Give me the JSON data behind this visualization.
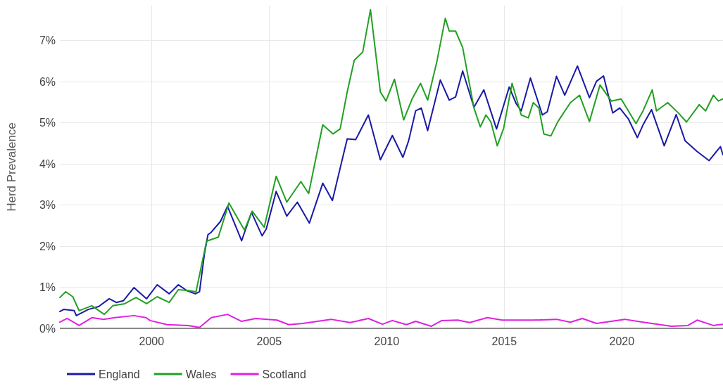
{
  "chart_data": {
    "type": "line",
    "ylabel": "Herd Prevalence",
    "xlim": [
      1996.1,
      2024.3
    ],
    "xticks": [
      2000,
      2005,
      2010,
      2015,
      2020
    ],
    "ylim": [
      0,
      7.85
    ],
    "yticks": [
      {
        "value": 0,
        "label": "0%"
      },
      {
        "value": 1,
        "label": "1%"
      },
      {
        "value": 2,
        "label": "2%"
      },
      {
        "value": 3,
        "label": "3%"
      },
      {
        "value": 4,
        "label": "4%"
      },
      {
        "value": 5,
        "label": "5%"
      },
      {
        "value": 6,
        "label": "6%"
      },
      {
        "value": 7,
        "label": "7%"
      }
    ],
    "grid": true,
    "legend": "bottom left",
    "marker": "none",
    "line_style": "solid",
    "series": [
      {
        "name": "England",
        "color": "#1a1aa6",
        "x": [
          1996.1,
          1996.26,
          1996.71,
          1996.8,
          1997.31,
          1997.75,
          1998.2,
          1998.5,
          1998.8,
          1999.25,
          1999.79,
          2000.24,
          2000.75,
          2001.14,
          2001.5,
          2001.86,
          2002.04,
          2002.25,
          2002.4,
          2002.54,
          2002.93,
          2003.23,
          2003.83,
          2004.25,
          2004.7,
          2004.88,
          2005.3,
          2005.75,
          2006.2,
          2006.71,
          2007.28,
          2007.69,
          2008.32,
          2008.68,
          2009.22,
          2009.73,
          2010.24,
          2010.69,
          2010.93,
          2011.23,
          2011.47,
          2011.74,
          2012.28,
          2012.66,
          2012.93,
          2013.23,
          2013.71,
          2014.13,
          2014.67,
          2015.21,
          2015.51,
          2015.72,
          2016.11,
          2016.62,
          2016.83,
          2017.22,
          2017.57,
          2018.11,
          2018.62,
          2018.92,
          2019.22,
          2019.61,
          2019.91,
          2020.27,
          2020.66,
          2020.9,
          2021.26,
          2021.8,
          2022.31,
          2022.69,
          2023.2,
          2023.71,
          2024.19,
          2024.3
        ],
        "values": [
          0.41,
          0.46,
          0.43,
          0.31,
          0.46,
          0.53,
          0.72,
          0.63,
          0.67,
          0.99,
          0.72,
          1.06,
          0.84,
          1.06,
          0.92,
          0.84,
          0.89,
          1.82,
          2.28,
          2.34,
          2.6,
          2.97,
          2.13,
          2.82,
          2.25,
          2.42,
          3.33,
          2.73,
          3.07,
          2.56,
          3.53,
          3.11,
          4.61,
          4.59,
          5.19,
          4.1,
          4.69,
          4.16,
          4.56,
          5.29,
          5.36,
          4.81,
          6.04,
          5.55,
          5.63,
          6.26,
          5.38,
          5.8,
          4.85,
          5.87,
          5.46,
          5.29,
          6.09,
          5.19,
          5.27,
          6.13,
          5.67,
          6.38,
          5.61,
          6.01,
          6.14,
          5.24,
          5.36,
          5.1,
          4.64,
          4.95,
          5.32,
          4.44,
          5.2,
          4.56,
          4.3,
          4.08,
          4.42,
          4.22
        ]
      },
      {
        "name": "Wales",
        "color": "#22a022",
        "x": [
          1996.1,
          1996.35,
          1996.65,
          1996.92,
          1997.46,
          1997.99,
          1998.35,
          1998.86,
          1999.34,
          1999.79,
          2000.24,
          2000.75,
          2001.14,
          2001.56,
          2001.89,
          2002.34,
          2002.84,
          2003.29,
          2003.95,
          2004.28,
          2004.79,
          2005.3,
          2005.75,
          2006.35,
          2006.68,
          2007.28,
          2007.72,
          2008.02,
          2008.32,
          2008.62,
          2008.98,
          2009.31,
          2009.73,
          2009.97,
          2010.33,
          2010.72,
          2011.08,
          2011.44,
          2011.74,
          2012.13,
          2012.49,
          2012.66,
          2012.93,
          2013.23,
          2013.71,
          2013.98,
          2014.22,
          2014.43,
          2014.7,
          2014.97,
          2015.33,
          2015.72,
          2016.02,
          2016.23,
          2016.47,
          2016.68,
          2016.98,
          2017.28,
          2017.81,
          2018.2,
          2018.62,
          2019.07,
          2019.55,
          2019.97,
          2020.6,
          2020.9,
          2021.29,
          2021.47,
          2021.95,
          2022.4,
          2022.75,
          2023.29,
          2023.56,
          2023.89,
          2024.1,
          2024.3
        ],
        "values": [
          0.75,
          0.89,
          0.77,
          0.43,
          0.55,
          0.34,
          0.55,
          0.6,
          0.75,
          0.6,
          0.77,
          0.63,
          0.94,
          0.92,
          0.89,
          2.12,
          2.22,
          3.05,
          2.39,
          2.85,
          2.46,
          3.7,
          3.07,
          3.57,
          3.28,
          4.95,
          4.73,
          4.85,
          5.75,
          6.52,
          6.72,
          7.75,
          5.75,
          5.53,
          6.06,
          5.07,
          5.58,
          5.96,
          5.55,
          6.48,
          7.54,
          7.23,
          7.23,
          6.83,
          5.36,
          4.9,
          5.19,
          5.02,
          4.44,
          4.86,
          5.96,
          5.19,
          5.12,
          5.49,
          5.36,
          4.73,
          4.68,
          5.03,
          5.49,
          5.67,
          5.03,
          5.92,
          5.53,
          5.58,
          4.98,
          5.29,
          5.8,
          5.29,
          5.49,
          5.24,
          5.02,
          5.44,
          5.29,
          5.67,
          5.53,
          5.58
        ]
      },
      {
        "name": "Scotland",
        "color": "#e020e0",
        "x": [
          1996.1,
          1996.41,
          1996.92,
          1997.46,
          1997.96,
          1998.44,
          1999.25,
          1999.76,
          1999.94,
          2000.66,
          2001.56,
          2002.04,
          2002.54,
          2003.23,
          2003.83,
          2004.43,
          2005.33,
          2005.84,
          2006.44,
          2007.63,
          2008.44,
          2009.22,
          2009.82,
          2010.24,
          2010.84,
          2011.23,
          2011.89,
          2012.34,
          2013.02,
          2013.53,
          2014.28,
          2014.91,
          2016.23,
          2017.22,
          2017.81,
          2018.32,
          2018.92,
          2020.12,
          2020.9,
          2022.1,
          2022.81,
          2023.2,
          2023.89,
          2024.3
        ],
        "values": [
          0.15,
          0.24,
          0.07,
          0.26,
          0.22,
          0.26,
          0.31,
          0.26,
          0.19,
          0.09,
          0.07,
          0.02,
          0.26,
          0.34,
          0.17,
          0.24,
          0.2,
          0.09,
          0.12,
          0.22,
          0.14,
          0.24,
          0.1,
          0.19,
          0.09,
          0.17,
          0.05,
          0.19,
          0.2,
          0.14,
          0.26,
          0.2,
          0.2,
          0.22,
          0.15,
          0.24,
          0.12,
          0.22,
          0.15,
          0.05,
          0.07,
          0.2,
          0.07,
          0.1
        ]
      }
    ]
  }
}
